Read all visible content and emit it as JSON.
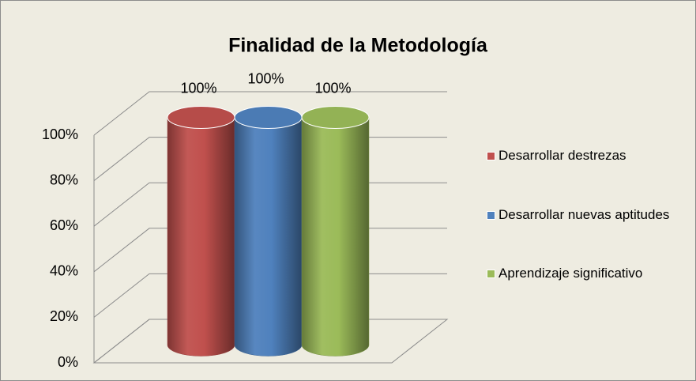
{
  "chart_data": {
    "type": "bar3d",
    "title": "Finalidad de la Metodología",
    "series": [
      {
        "name": "Desarrollar destrezas",
        "color": "#c0504d",
        "values": [
          100
        ],
        "value_labels": [
          "100%"
        ]
      },
      {
        "name": "Desarrollar nuevas aptitudes",
        "color": "#4f81bd",
        "values": [
          100
        ],
        "value_labels": [
          "100%"
        ]
      },
      {
        "name": "Aprendizaje significativo",
        "color": "#9bbb59",
        "values": [
          100
        ],
        "value_labels": [
          "100%"
        ]
      }
    ],
    "ylim": [
      0,
      100
    ],
    "yticks": [
      {
        "value": 0,
        "label": "0%"
      },
      {
        "value": 20,
        "label": "20%"
      },
      {
        "value": 40,
        "label": "40%"
      },
      {
        "value": 60,
        "label": "60%"
      },
      {
        "value": 80,
        "label": "80%"
      },
      {
        "value": 100,
        "label": "100%"
      }
    ],
    "grid": true,
    "legend": "right"
  }
}
